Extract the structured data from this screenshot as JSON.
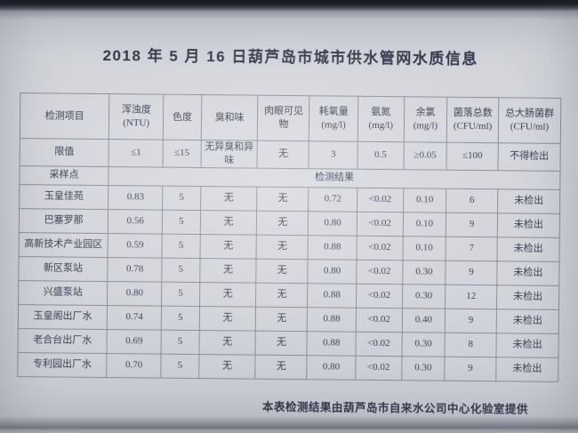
{
  "title": "2018 年 5 月 16 日葫芦岛市城市供水管网水质信息",
  "table": {
    "header": [
      "检测项目",
      "浑浊度 (NTU)",
      "色度",
      "臭和味",
      "肉眼可见物",
      "耗氧量\n(mg/l)",
      "氨氮 (mg/l)",
      "余氯\n(mg/l)",
      "菌落总数\n(CFU/ml)",
      "总大肠菌群\n(CFU/ml)"
    ],
    "limit_row": {
      "label": "限值",
      "values": [
        "≤1",
        "≤15",
        "无异臭和异味",
        "无",
        "3",
        "0.5",
        "≥0.05",
        "≤100",
        "不得检出"
      ]
    },
    "section_row": {
      "label": "采样点",
      "value": "检测结果"
    },
    "rows": [
      {
        "site": "玉皇佳苑",
        "values": [
          "0.83",
          "5",
          "无",
          "无",
          "0.72",
          "<0.02",
          "0.10",
          "6",
          "未检出"
        ]
      },
      {
        "site": "巴塞罗那",
        "values": [
          "0.56",
          "5",
          "无",
          "无",
          "0.80",
          "<0.02",
          "0.10",
          "9",
          "未检出"
        ]
      },
      {
        "site": "高新技术产业园区",
        "values": [
          "0.59",
          "5",
          "无",
          "无",
          "0.88",
          "<0.02",
          "0.10",
          "7",
          "未检出"
        ]
      },
      {
        "site": "新区泵站",
        "values": [
          "0.78",
          "5",
          "无",
          "无",
          "0.80",
          "<0.02",
          "0.30",
          "9",
          "未检出"
        ]
      },
      {
        "site": "兴盛泵站",
        "values": [
          "0.80",
          "5",
          "无",
          "无",
          "0.88",
          "<0.02",
          "0.30",
          "12",
          "未检出"
        ]
      },
      {
        "site": "玉皇阁出厂水",
        "values": [
          "0.74",
          "5",
          "无",
          "无",
          "0.88",
          "<0.02",
          "0.40",
          "9",
          "未检出"
        ]
      },
      {
        "site": "老合台出厂水",
        "values": [
          "0.69",
          "5",
          "无",
          "无",
          "0.88",
          "<0.02",
          "0.30",
          "8",
          "未检出"
        ]
      },
      {
        "site": "专利园出厂水",
        "values": [
          "0.70",
          "5",
          "无",
          "无",
          "0.80",
          "<0.02",
          "0.30",
          "9",
          "未检出"
        ]
      }
    ]
  },
  "footer": "本表检测结果由葫芦岛市自来水公司中心化验室提供",
  "colors": {
    "paper": "#d6d8dd",
    "ink": "#3d4354",
    "grid_line": "#8a909c",
    "photo_edge": "#16181d"
  }
}
